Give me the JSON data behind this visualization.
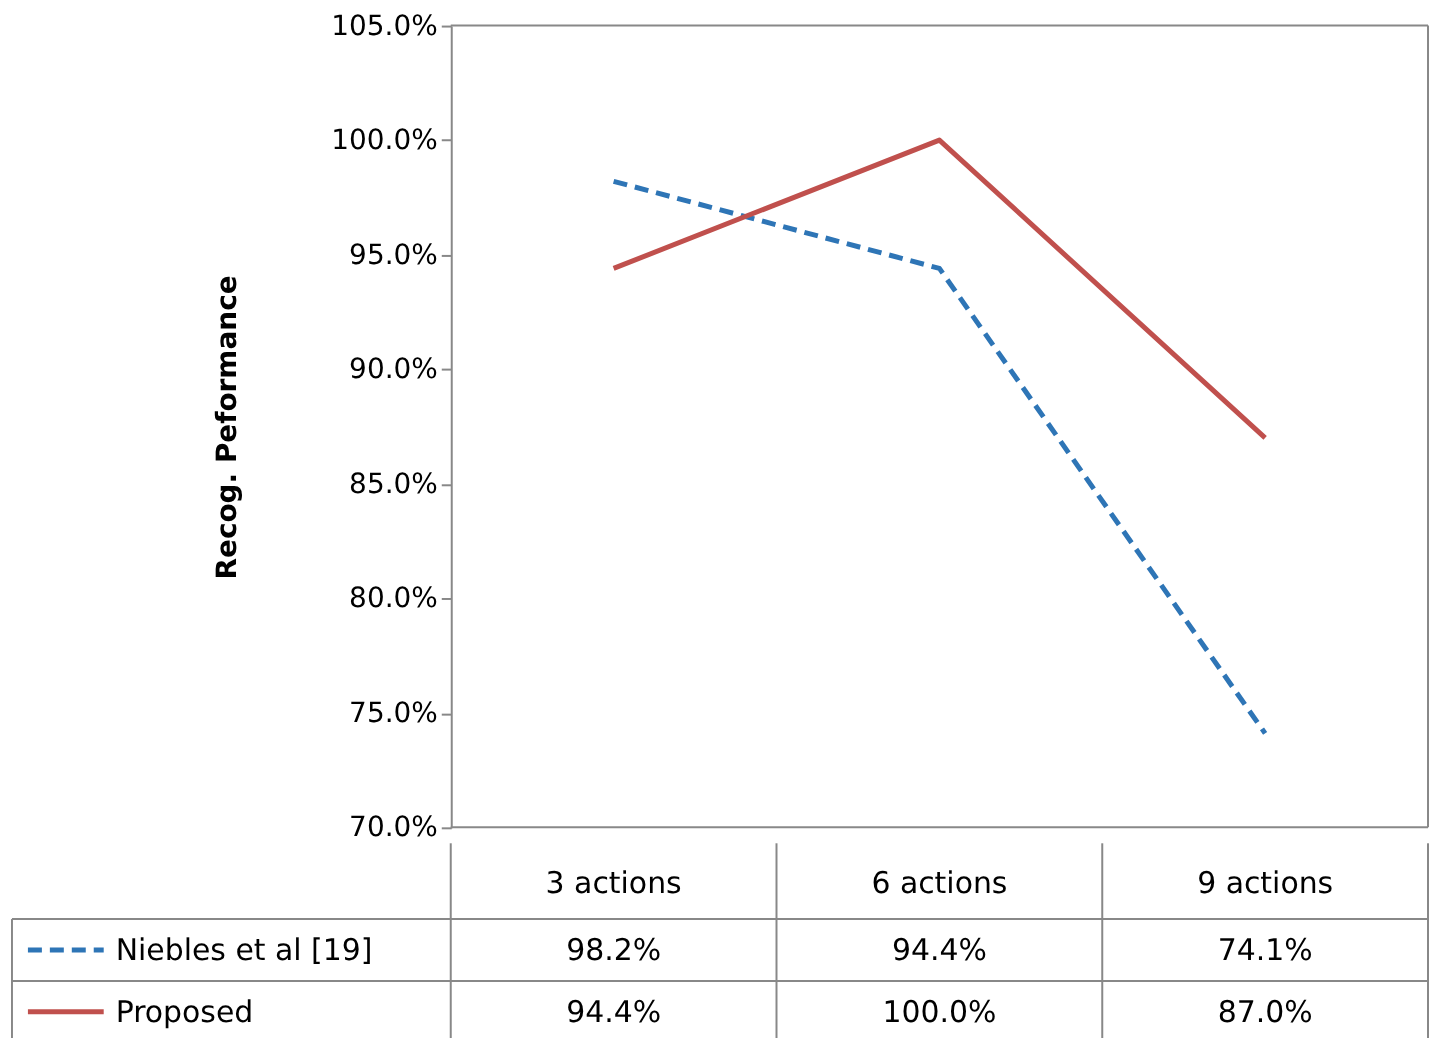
{
  "chart_data": {
    "type": "line",
    "ylabel": "Recog. Peformance",
    "categories": [
      "3 actions",
      "6 actions",
      "9 actions"
    ],
    "ylim": [
      70,
      105
    ],
    "yticks": [
      {
        "value": 70,
        "label": "70.0%"
      },
      {
        "value": 75,
        "label": "75.0%"
      },
      {
        "value": 80,
        "label": "80.0%"
      },
      {
        "value": 85,
        "label": "85.0%"
      },
      {
        "value": 90,
        "label": "90.0%"
      },
      {
        "value": 95,
        "label": "95.0%"
      },
      {
        "value": 100,
        "label": "100.0%"
      },
      {
        "value": 105,
        "label": "105.0%"
      }
    ],
    "legend": "bottom",
    "series": [
      {
        "name": "Niebles et al [19]",
        "color": "#2e75b6",
        "line_style": "dashed",
        "values": [
          98.2,
          94.4,
          74.1
        ],
        "value_labels": [
          "98.2%",
          "94.4%",
          "74.1%"
        ]
      },
      {
        "name": "Proposed",
        "color": "#c0504d",
        "line_style": "solid",
        "values": [
          94.4,
          100.0,
          87.0
        ],
        "value_labels": [
          "94.4%",
          "100.0%",
          "87.0%"
        ]
      }
    ]
  }
}
